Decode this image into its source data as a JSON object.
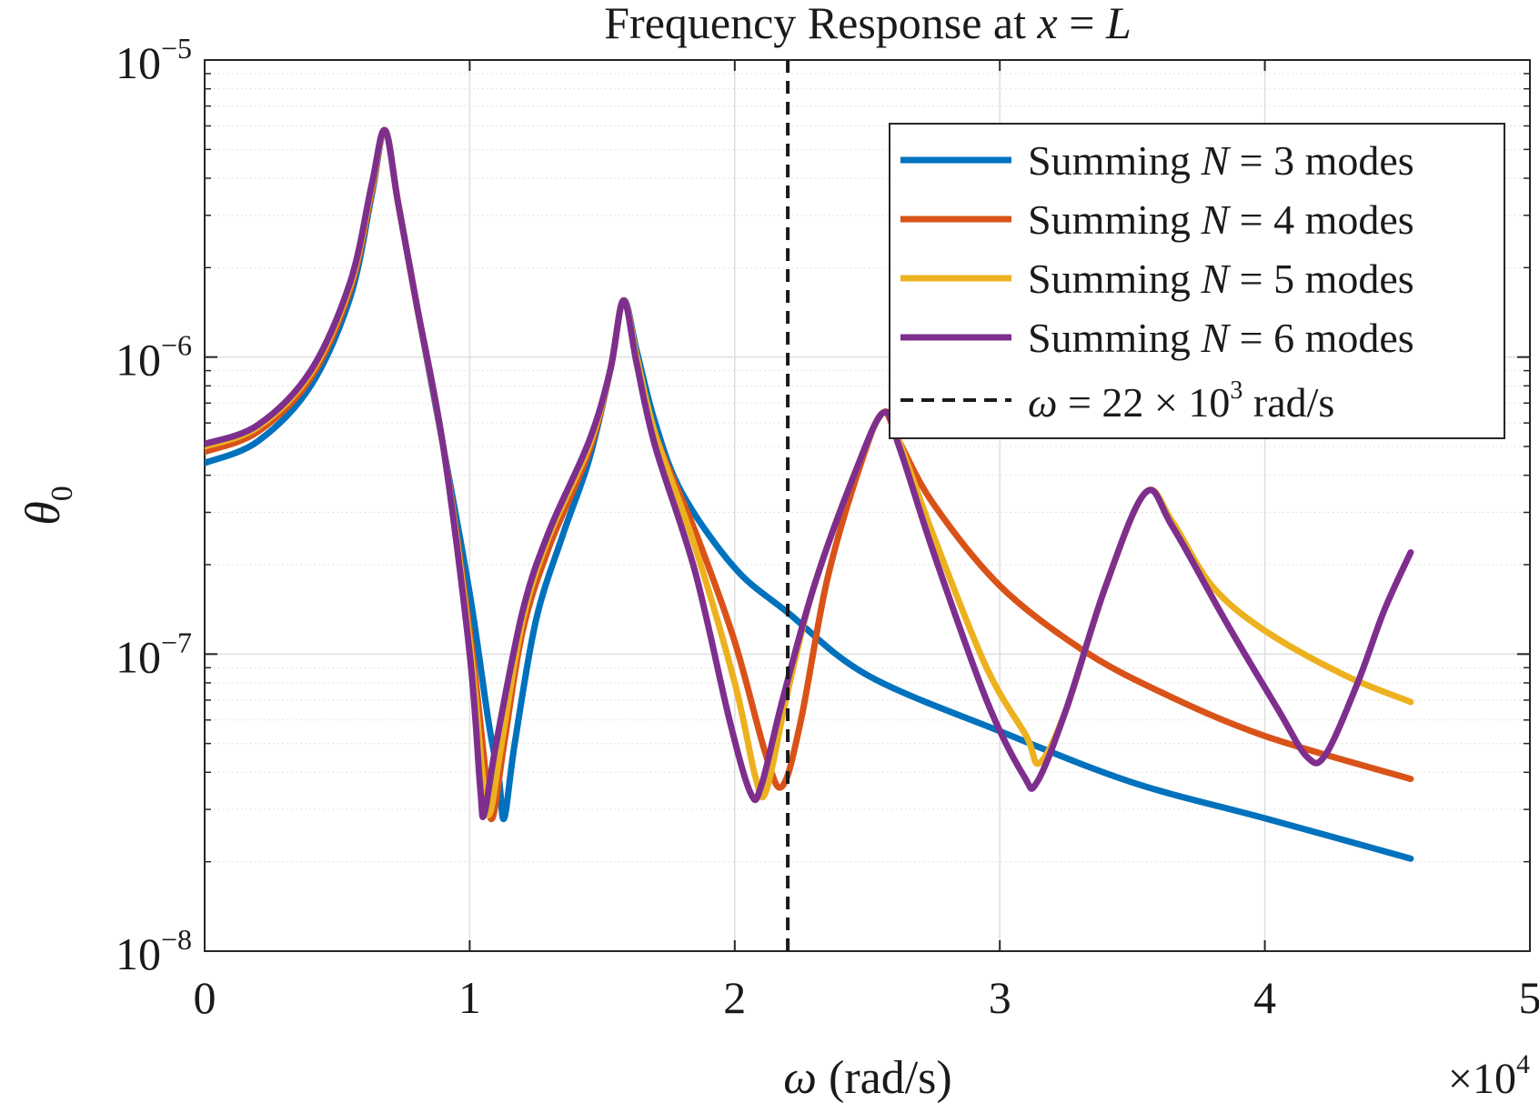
{
  "chart_data": {
    "type": "line",
    "title": {
      "prefix": "Frequency Response at ",
      "var": "x",
      "eq": " = ",
      "var2": "L"
    },
    "xlabel": {
      "sym": "ω",
      "rest": " (rad/s)"
    },
    "ylabel": {
      "sym": "θ",
      "sub": "0"
    },
    "x_multiplier": {
      "times": "×10",
      "exp": "4"
    },
    "xlim": [
      0,
      50000
    ],
    "ylim": [
      1e-08,
      1e-05
    ],
    "yscale": "log",
    "grid": true,
    "legend_position": "top-right",
    "x_ticks": [
      {
        "value": 0,
        "label": "0"
      },
      {
        "value": 10000,
        "label": "1"
      },
      {
        "value": 20000,
        "label": "2"
      },
      {
        "value": 30000,
        "label": "3"
      },
      {
        "value": 40000,
        "label": "4"
      },
      {
        "value": 50000,
        "label": "5"
      }
    ],
    "y_ticks": [
      {
        "value": 1e-08,
        "base": "10",
        "exp": "−8"
      },
      {
        "value": 1e-07,
        "base": "10",
        "exp": "−7"
      },
      {
        "value": 1e-06,
        "base": "10",
        "exp": "−6"
      },
      {
        "value": 1e-05,
        "base": "10",
        "exp": "−5"
      }
    ],
    "series": [
      {
        "name": {
          "pre": "Summing ",
          "var": "N",
          "post": " = 3 modes"
        },
        "color": "#0072BD",
        "points": [
          [
            0,
            4.4e-07
          ],
          [
            2000,
            5.2e-07
          ],
          [
            4000,
            8e-07
          ],
          [
            5500,
            1.6e-06
          ],
          [
            6300,
            3.5e-06
          ],
          [
            6800,
            5.8e-06
          ],
          [
            7300,
            3.3e-06
          ],
          [
            8000,
            1.5e-06
          ],
          [
            9000,
            5e-07
          ],
          [
            10000,
            1.6e-07
          ],
          [
            10700,
            6e-08
          ],
          [
            11100,
            3.8e-08
          ],
          [
            11300,
            2.8e-08
          ],
          [
            11700,
            5e-08
          ],
          [
            12500,
            1.3e-07
          ],
          [
            13500,
            2.5e-07
          ],
          [
            14500,
            4.5e-07
          ],
          [
            15300,
            9e-07
          ],
          [
            15800,
            1.55e-06
          ],
          [
            16300,
            1.05e-06
          ],
          [
            17000,
            6e-07
          ],
          [
            18000,
            3.5e-07
          ],
          [
            20000,
            1.95e-07
          ],
          [
            22000,
            1.38e-07
          ],
          [
            25000,
            8.5e-08
          ],
          [
            30000,
            5.5e-08
          ],
          [
            35000,
            3.7e-08
          ],
          [
            40000,
            2.8e-08
          ],
          [
            45500,
            2.05e-08
          ]
        ]
      },
      {
        "name": {
          "pre": "Summing ",
          "var": "N",
          "post": " = 4 modes"
        },
        "color": "#D95319",
        "points": [
          [
            0,
            4.8e-07
          ],
          [
            2000,
            5.6e-07
          ],
          [
            4000,
            8.5e-07
          ],
          [
            5500,
            1.7e-06
          ],
          [
            6300,
            3.6e-06
          ],
          [
            6800,
            5.8e-06
          ],
          [
            7300,
            3.3e-06
          ],
          [
            8000,
            1.5e-06
          ],
          [
            9000,
            5e-07
          ],
          [
            10000,
            1.2e-07
          ],
          [
            10600,
            4e-08
          ],
          [
            10850,
            2.8e-08
          ],
          [
            11300,
            5e-08
          ],
          [
            12000,
            1.2e-07
          ],
          [
            13000,
            2.3e-07
          ],
          [
            14500,
            4.8e-07
          ],
          [
            15300,
            9e-07
          ],
          [
            15800,
            1.55e-06
          ],
          [
            16300,
            1e-06
          ],
          [
            17000,
            5.5e-07
          ],
          [
            18500,
            2.6e-07
          ],
          [
            20000,
            1.1e-07
          ],
          [
            21200,
            4.5e-08
          ],
          [
            21800,
            3.6e-08
          ],
          [
            22500,
            6e-08
          ],
          [
            23500,
            1.8e-07
          ],
          [
            24800,
            4.5e-07
          ],
          [
            25600,
            6.5e-07
          ],
          [
            26200,
            5.2e-07
          ],
          [
            27500,
            3.2e-07
          ],
          [
            30000,
            1.7e-07
          ],
          [
            33000,
            1.05e-07
          ],
          [
            36000,
            7.5e-08
          ],
          [
            40000,
            5.3e-08
          ],
          [
            45500,
            3.8e-08
          ]
        ]
      },
      {
        "name": {
          "pre": "Summing ",
          "var": "N",
          "post": " = 5 modes"
        },
        "color": "#EDB120",
        "points": [
          [
            0,
            5e-07
          ],
          [
            2000,
            5.8e-07
          ],
          [
            4000,
            8.8e-07
          ],
          [
            5500,
            1.75e-06
          ],
          [
            6300,
            3.7e-06
          ],
          [
            6800,
            5.8e-06
          ],
          [
            7300,
            3.3e-06
          ],
          [
            8000,
            1.5e-06
          ],
          [
            9000,
            5e-07
          ],
          [
            10000,
            1.1e-07
          ],
          [
            10500,
            3.8e-08
          ],
          [
            10750,
            2.9e-08
          ],
          [
            11200,
            5e-08
          ],
          [
            12000,
            1.3e-07
          ],
          [
            13000,
            2.5e-07
          ],
          [
            14500,
            5e-07
          ],
          [
            15300,
            9e-07
          ],
          [
            15800,
            1.55e-06
          ],
          [
            16300,
            1e-06
          ],
          [
            17000,
            5.5e-07
          ],
          [
            18500,
            2.3e-07
          ],
          [
            20000,
            8e-08
          ],
          [
            20800,
            3.8e-08
          ],
          [
            21200,
            3.5e-08
          ],
          [
            22000,
            7.5e-08
          ],
          [
            23000,
            1.7e-07
          ],
          [
            24500,
            4e-07
          ],
          [
            25600,
            6.5e-07
          ],
          [
            26200,
            5.2e-07
          ],
          [
            27500,
            2.5e-07
          ],
          [
            29500,
            9e-08
          ],
          [
            31000,
            5.3e-08
          ],
          [
            31500,
            4.3e-08
          ],
          [
            32500,
            6.5e-08
          ],
          [
            34000,
            1.7e-07
          ],
          [
            35500,
            3.5e-07
          ],
          [
            36500,
            2.8e-07
          ],
          [
            38000,
            1.7e-07
          ],
          [
            40000,
            1.2e-07
          ],
          [
            43000,
            8.5e-08
          ],
          [
            45500,
            6.9e-08
          ]
        ]
      },
      {
        "name": {
          "pre": "Summing ",
          "var": "N",
          "post": " = 6 modes"
        },
        "color": "#7E2F8E",
        "points": [
          [
            0,
            5.1e-07
          ],
          [
            2000,
            5.9e-07
          ],
          [
            4000,
            9e-07
          ],
          [
            5500,
            1.8e-06
          ],
          [
            6300,
            3.8e-06
          ],
          [
            6800,
            5.8e-06
          ],
          [
            7300,
            3.3e-06
          ],
          [
            8000,
            1.5e-06
          ],
          [
            9000,
            5e-07
          ],
          [
            10000,
            1e-07
          ],
          [
            10400,
            3.5e-08
          ],
          [
            10550,
            2.9e-08
          ],
          [
            11000,
            5e-08
          ],
          [
            12000,
            1.4e-07
          ],
          [
            13000,
            2.6e-07
          ],
          [
            14500,
            5.2e-07
          ],
          [
            15300,
            9e-07
          ],
          [
            15800,
            1.55e-06
          ],
          [
            16300,
            9.5e-07
          ],
          [
            17000,
            5e-07
          ],
          [
            18500,
            1.9e-07
          ],
          [
            19800,
            6e-08
          ],
          [
            20600,
            3.4e-08
          ],
          [
            21000,
            3.6e-08
          ],
          [
            21800,
            7e-08
          ],
          [
            23000,
            1.7e-07
          ],
          [
            24500,
            4e-07
          ],
          [
            25600,
            6.5e-07
          ],
          [
            26200,
            5e-07
          ],
          [
            27500,
            2.2e-07
          ],
          [
            29500,
            7e-08
          ],
          [
            30900,
            3.9e-08
          ],
          [
            31400,
            3.7e-08
          ],
          [
            32500,
            6.5e-08
          ],
          [
            34000,
            1.7e-07
          ],
          [
            35500,
            3.5e-07
          ],
          [
            36500,
            2.7e-07
          ],
          [
            38500,
            1.3e-07
          ],
          [
            40500,
            6.5e-08
          ],
          [
            41600,
            4.5e-08
          ],
          [
            42300,
            4.6e-08
          ],
          [
            43500,
            8e-08
          ],
          [
            44500,
            1.4e-07
          ],
          [
            45500,
            2.2e-07
          ]
        ]
      }
    ],
    "reference_line": {
      "x": 22000,
      "color": "#1a1a1a",
      "label": {
        "sym": "ω",
        "mid": " = 22 × 10",
        "exp": "3",
        "post": " rad/s"
      }
    }
  }
}
